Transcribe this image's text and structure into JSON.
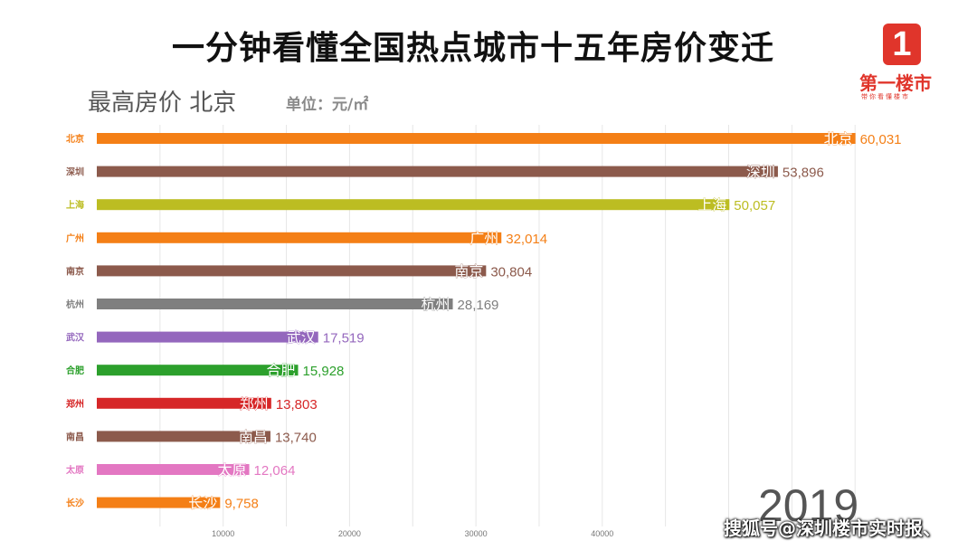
{
  "header": {
    "title": "一分钟看懂全国热点城市十五年房价变迁",
    "subtitle": "最高房价  北京",
    "unit": "单位：元/㎡"
  },
  "logo": {
    "digit": "1",
    "name": "第一楼市",
    "slogan": "带你看懂楼市"
  },
  "year": "2019",
  "watermark": "搜狐号@深圳楼市实时报、",
  "colors": {
    "orange": "#f47f16",
    "brown": "#8c5a4c",
    "olive": "#bcbd22",
    "gray": "#7f7f7f",
    "purple": "#9467bd",
    "green": "#2ca02c",
    "red": "#d62728",
    "pink": "#e377c2"
  },
  "chart_data": {
    "type": "bar",
    "orientation": "horizontal",
    "categories": [
      "北京",
      "深圳",
      "上海",
      "广州",
      "南京",
      "杭州",
      "武汉",
      "合肥",
      "郑州",
      "南昌",
      "太原",
      "长沙"
    ],
    "values": [
      60031,
      53896,
      50057,
      32014,
      30804,
      28169,
      17519,
      15928,
      13803,
      13740,
      12064,
      9758
    ],
    "value_labels": [
      "60,031",
      "53,896",
      "50,057",
      "32,014",
      "30,804",
      "28,169",
      "17,519",
      "15,928",
      "13,803",
      "13,740",
      "12,064",
      "9,758"
    ],
    "bar_colors": [
      "#f47f16",
      "#8c5a4c",
      "#bcbd22",
      "#f47f16",
      "#8c5a4c",
      "#7f7f7f",
      "#9467bd",
      "#2ca02c",
      "#d62728",
      "#8c5a4c",
      "#e377c2",
      "#f47f16"
    ],
    "x_ticks": [
      10000,
      20000,
      30000,
      40000
    ],
    "x_tick_labels": [
      "10000",
      "20000",
      "30000",
      "40000"
    ],
    "xlim": [
      0,
      60000
    ],
    "grid": true,
    "title": "一分钟看懂全国热点城市十五年房价变迁",
    "xlabel": "",
    "ylabel": ""
  }
}
